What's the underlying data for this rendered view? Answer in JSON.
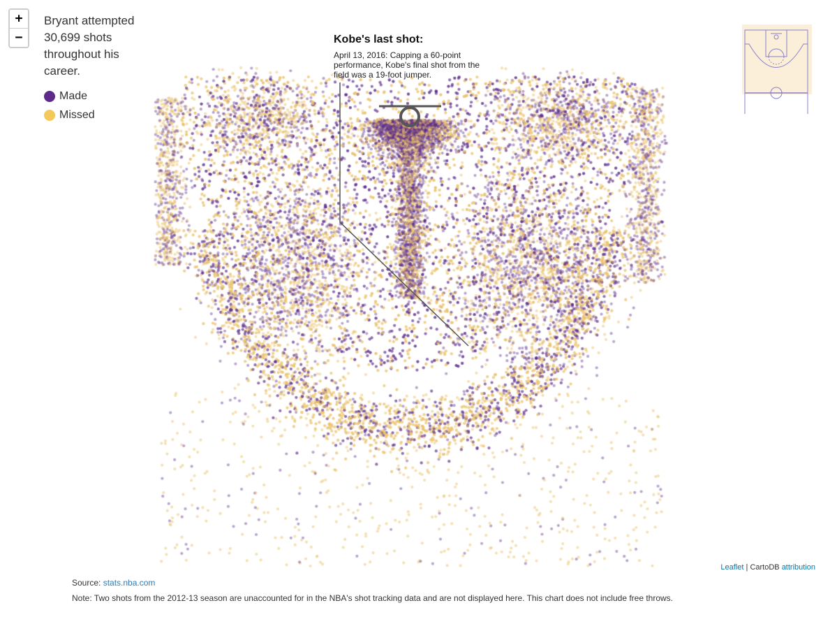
{
  "intro": {
    "text": "Bryant attempted 30,699 shots throughout his career."
  },
  "legend": {
    "made_label": "Made",
    "missed_label": "Missed"
  },
  "colors": {
    "made": "#5b2a8a",
    "missed": "#f5c85a",
    "hoop": "#555555",
    "annotation_line": "#555555",
    "minimap_bg": "#fbefd9",
    "minimap_lines": "#8a7fc7"
  },
  "zoom": {
    "in_label": "+",
    "out_label": "−"
  },
  "annotation": {
    "title": "Kobe's last shot:",
    "text": "April 13, 2016: Capping a 60-point performance, Kobe's final shot from the field was a 19-foot jumper."
  },
  "attribution": {
    "leaflet": "Leaflet",
    "separator": " | ",
    "cartodb": "CartoDB",
    "attribution_link": "attribution"
  },
  "source": {
    "label": "Source: ",
    "link": "stats.nba.com"
  },
  "note": "Note: Two shots from the 2012-13 season are unaccounted for in the NBA's shot tracking data and are not displayed here. This chart does not include free throws.",
  "chart_data": {
    "type": "scatter",
    "total_shots": 30699,
    "series": [
      {
        "name": "Made"
      },
      {
        "name": "Missed"
      }
    ]
  }
}
